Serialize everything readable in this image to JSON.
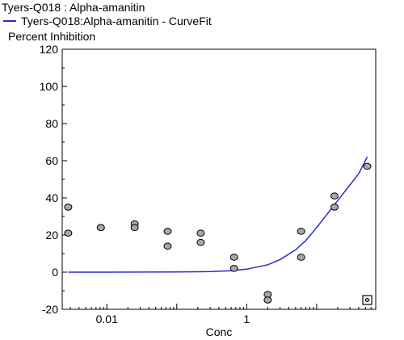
{
  "chart_data": {
    "type": "scatter",
    "title": "Tyers-Q018  :  Alpha-amanitin",
    "legend": [
      {
        "label": "Tyers-Q018:Alpha-amanitin - CurveFit",
        "color": "#2a2ad8",
        "style": "line"
      }
    ],
    "xlabel": "Conc",
    "ylabel": "Percent Inhibition",
    "x_scale": "log",
    "xlim": [
      0.0023,
      70
    ],
    "ylim": [
      -20,
      120
    ],
    "x_ticks": [
      {
        "value": 0.01,
        "label": "0.01"
      },
      {
        "value": 1,
        "label": "1"
      }
    ],
    "y_ticks": [
      {
        "value": -20,
        "label": "-20"
      },
      {
        "value": 0,
        "label": "0"
      },
      {
        "value": 20,
        "label": "20"
      },
      {
        "value": 40,
        "label": "40"
      },
      {
        "value": 60,
        "label": "60"
      },
      {
        "value": 80,
        "label": "80"
      },
      {
        "value": 100,
        "label": "100"
      },
      {
        "value": 120,
        "label": "120"
      }
    ],
    "points": [
      {
        "x": 0.0028,
        "y": 35
      },
      {
        "x": 0.0028,
        "y": 21
      },
      {
        "x": 0.0082,
        "y": 24
      },
      {
        "x": 0.0082,
        "y": 24
      },
      {
        "x": 0.025,
        "y": 26
      },
      {
        "x": 0.025,
        "y": 24
      },
      {
        "x": 0.074,
        "y": 22
      },
      {
        "x": 0.074,
        "y": 14
      },
      {
        "x": 0.22,
        "y": 21
      },
      {
        "x": 0.22,
        "y": 16
      },
      {
        "x": 0.66,
        "y": 8
      },
      {
        "x": 0.66,
        "y": 2
      },
      {
        "x": 2.0,
        "y": -12
      },
      {
        "x": 2.0,
        "y": -15
      },
      {
        "x": 6.0,
        "y": 22
      },
      {
        "x": 6.0,
        "y": 8
      },
      {
        "x": 18,
        "y": 41
      },
      {
        "x": 18,
        "y": 35
      },
      {
        "x": 53,
        "y": 57
      }
    ],
    "outliers": [
      {
        "x": 53,
        "y": -15
      }
    ],
    "curve": {
      "name": "Tyers-Q018:Alpha-amanitin - CurveFit",
      "color": "#2a2ad8",
      "x": [
        0.0028,
        0.01,
        0.1,
        0.3,
        0.6,
        1,
        2,
        3,
        5,
        7,
        10,
        15,
        20,
        30,
        40,
        53
      ],
      "y": [
        0,
        0,
        0.1,
        0.3,
        0.8,
        1.6,
        4,
        6.8,
        12,
        17,
        24,
        32.5,
        38.5,
        47,
        53,
        62
      ]
    },
    "grid": false,
    "legend_position": "top-left"
  },
  "colors": {
    "curve": "#2a2ad8",
    "point_fill": "#a8a8a8",
    "point_stroke": "#000000",
    "axis": "#000000"
  }
}
